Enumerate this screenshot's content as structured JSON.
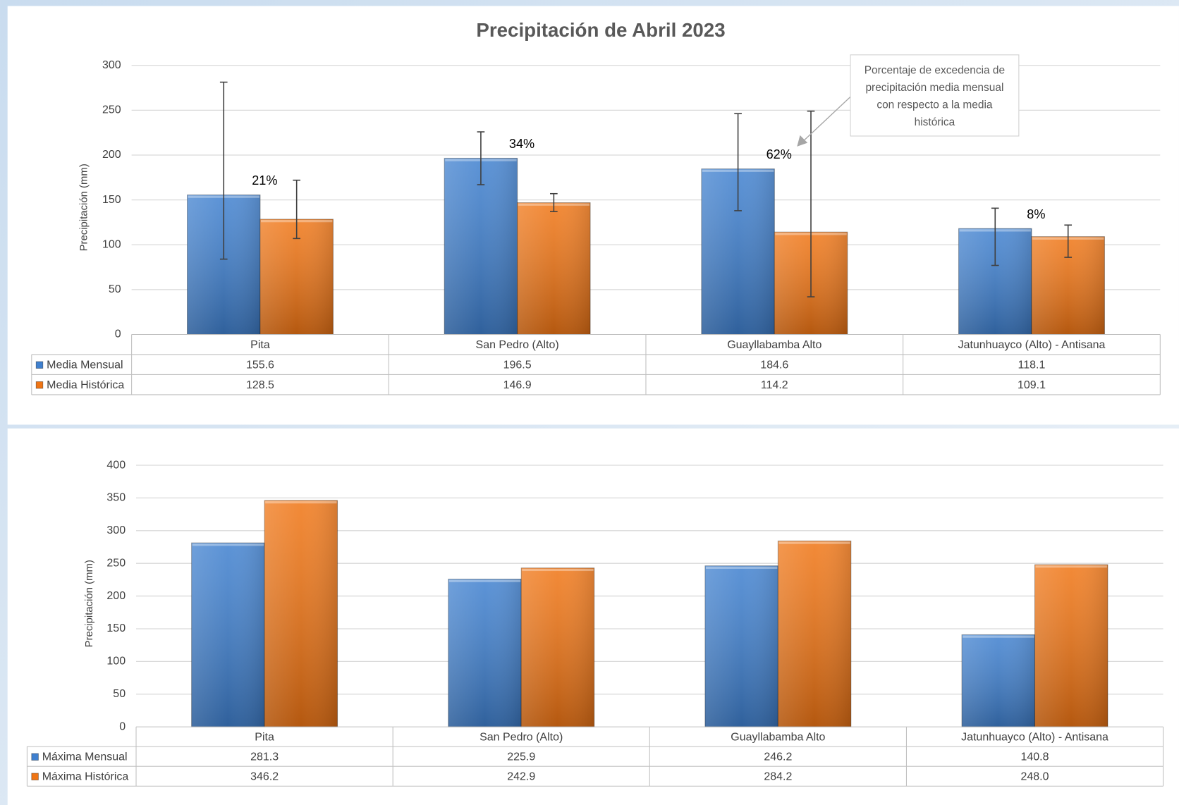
{
  "chart_data": [
    {
      "type": "bar",
      "title": "Precipitación de Abril 2023",
      "y_label": "Precipitación (mm)",
      "categories": [
        "Pita",
        "San Pedro (Alto)",
        "Guayllabamba Alto",
        "Jatunhuayco (Alto) - Antisana"
      ],
      "series": [
        {
          "name": "Media Mensual",
          "color": "#3f80cf",
          "values": [
            155.6,
            196.5,
            184.6,
            118.1
          ],
          "value_labels": [
            "155.6",
            "196.5",
            "184.6",
            "118.1"
          ],
          "error_low": [
            84,
            167,
            138,
            77
          ],
          "error_high": [
            281.3,
            225.9,
            246.2,
            140.8
          ]
        },
        {
          "name": "Media Histórica",
          "color": "#f07514",
          "values": [
            128.5,
            146.9,
            114.2,
            109.1
          ],
          "value_labels": [
            "128.5",
            "146.9",
            "114.2",
            "109.1"
          ],
          "error_low": [
            107,
            137,
            42,
            86
          ],
          "error_high": [
            172,
            157,
            249,
            122
          ]
        }
      ],
      "exceedance": {
        "values": [
          21,
          34,
          62,
          8
        ],
        "value_labels": [
          "21%",
          "34%",
          "62%",
          "8%"
        ]
      },
      "annotation": "Porcentaje de excedencia de precipitación media mensual con respecto a la media histórica",
      "ylim": [
        0,
        300
      ],
      "yticks": [
        0,
        50,
        100,
        150,
        200,
        250,
        300
      ],
      "grid": true
    },
    {
      "type": "bar",
      "y_label": "Precipitación (mm)",
      "categories": [
        "Pita",
        "San Pedro (Alto)",
        "Guayllabamba Alto",
        "Jatunhuayco (Alto) - Antisana"
      ],
      "series": [
        {
          "name": "Máxima Mensual",
          "color": "#3f80cf",
          "values": [
            281.3,
            225.9,
            246.2,
            140.8
          ],
          "value_labels": [
            "281.3",
            "225.9",
            "246.2",
            "140.8"
          ]
        },
        {
          "name": "Máxima Histórica",
          "color": "#f07514",
          "values": [
            346.2,
            242.9,
            284.2,
            248.0
          ],
          "value_labels": [
            "346.2",
            "242.9",
            "284.2",
            "248.0"
          ]
        }
      ],
      "ylim": [
        0,
        400
      ],
      "yticks": [
        0,
        50,
        100,
        150,
        200,
        250,
        300,
        350,
        400
      ],
      "grid": true
    }
  ]
}
